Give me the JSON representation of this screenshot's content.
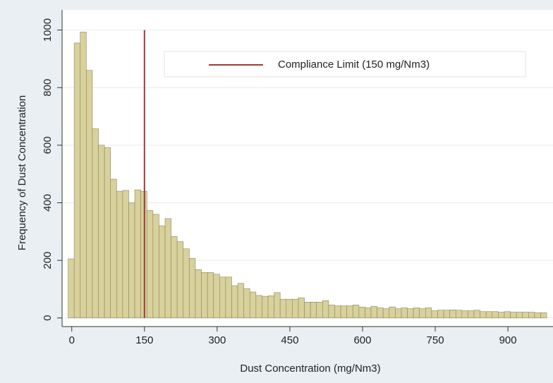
{
  "chart_data": {
    "type": "histogram",
    "xlabel": "Dust Concentration (mg/Nm3)",
    "ylabel": "Frequency of Dust Concentration",
    "bins": [
      -7.5,
      5,
      17.5,
      30,
      42.5,
      55,
      67.5,
      80,
      92.5,
      105,
      117.5,
      130,
      142.5,
      155,
      167.5,
      180,
      192.5,
      205,
      217.5,
      230,
      242.5,
      255,
      267.5,
      280,
      292.5,
      305,
      317.5,
      330,
      342.5,
      355,
      367.5,
      380,
      392.5,
      405,
      417.5,
      430,
      442.5,
      455,
      467.5,
      480,
      492.5,
      505,
      517.5,
      530,
      542.5,
      555,
      567.5,
      580,
      592.5,
      605,
      617.5,
      630,
      642.5,
      655,
      667.5,
      680,
      692.5,
      705,
      717.5,
      730,
      742.5,
      755,
      767.5,
      780,
      792.5,
      805,
      817.5,
      830,
      842.5,
      855,
      867.5,
      880,
      892.5,
      905,
      917.5,
      930,
      942.5,
      955,
      967.5,
      980
    ],
    "counts": [
      205,
      955,
      993,
      860,
      657,
      600,
      592,
      482,
      440,
      443,
      400,
      445,
      440,
      373,
      360,
      320,
      345,
      283,
      265,
      240,
      207,
      168,
      158,
      158,
      152,
      142,
      142,
      112,
      120,
      102,
      90,
      78,
      75,
      77,
      88,
      65,
      65,
      65,
      70,
      55,
      55,
      55,
      60,
      45,
      42,
      42,
      42,
      45,
      38,
      35,
      40,
      35,
      32,
      38,
      32,
      35,
      32,
      35,
      32,
      35,
      25,
      27,
      27,
      28,
      27,
      25,
      25,
      27,
      22,
      22,
      22,
      20,
      22,
      20,
      20,
      20,
      20,
      18,
      18
    ],
    "color": "#d8d19c",
    "edgecolor": "#8c8660",
    "xlim": [
      -20,
      993
    ],
    "ylim": [
      -30,
      1070
    ],
    "xticks": [
      0,
      150,
      300,
      450,
      600,
      750,
      900
    ],
    "yticks": [
      0,
      200,
      400,
      600,
      800,
      1000
    ],
    "grid": true,
    "vline": {
      "x": 150,
      "label": "Compliance Limit (150 mg/Nm3)",
      "color": "#9b3a3a"
    }
  }
}
